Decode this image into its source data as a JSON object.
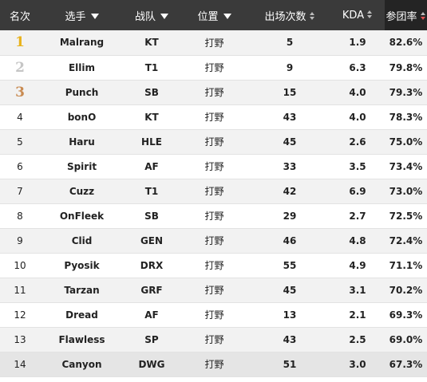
{
  "colors": {
    "header_bg": "#3a3a3a",
    "active_sort": "#e25252",
    "gold": "#e8b21b",
    "silver": "#c5c5c5",
    "bronze": "#c98b52"
  },
  "headers": {
    "rank": "名次",
    "player": "选手",
    "team": "战队",
    "position": "位置",
    "games": "出场次数",
    "kda": "KDA",
    "kill_participation": "参团率"
  },
  "rows": [
    {
      "rank": "1",
      "player": "Malrang",
      "team": "KT",
      "position": "打野",
      "games": "5",
      "kda": "1.9",
      "kp": "82.6%"
    },
    {
      "rank": "2",
      "player": "Ellim",
      "team": "T1",
      "position": "打野",
      "games": "9",
      "kda": "6.3",
      "kp": "79.8%"
    },
    {
      "rank": "3",
      "player": "Punch",
      "team": "SB",
      "position": "打野",
      "games": "15",
      "kda": "4.0",
      "kp": "79.3%"
    },
    {
      "rank": "4",
      "player": "bonO",
      "team": "KT",
      "position": "打野",
      "games": "43",
      "kda": "4.0",
      "kp": "78.3%"
    },
    {
      "rank": "5",
      "player": "Haru",
      "team": "HLE",
      "position": "打野",
      "games": "45",
      "kda": "2.6",
      "kp": "75.0%"
    },
    {
      "rank": "6",
      "player": "Spirit",
      "team": "AF",
      "position": "打野",
      "games": "33",
      "kda": "3.5",
      "kp": "73.4%"
    },
    {
      "rank": "7",
      "player": "Cuzz",
      "team": "T1",
      "position": "打野",
      "games": "42",
      "kda": "6.9",
      "kp": "73.0%"
    },
    {
      "rank": "8",
      "player": "OnFleek",
      "team": "SB",
      "position": "打野",
      "games": "29",
      "kda": "2.7",
      "kp": "72.5%"
    },
    {
      "rank": "9",
      "player": "Clid",
      "team": "GEN",
      "position": "打野",
      "games": "46",
      "kda": "4.8",
      "kp": "72.4%"
    },
    {
      "rank": "10",
      "player": "Pyosik",
      "team": "DRX",
      "position": "打野",
      "games": "55",
      "kda": "4.9",
      "kp": "71.1%"
    },
    {
      "rank": "11",
      "player": "Tarzan",
      "team": "GRF",
      "position": "打野",
      "games": "45",
      "kda": "3.1",
      "kp": "70.2%"
    },
    {
      "rank": "12",
      "player": "Dread",
      "team": "AF",
      "position": "打野",
      "games": "13",
      "kda": "2.1",
      "kp": "69.3%"
    },
    {
      "rank": "13",
      "player": "Flawless",
      "team": "SP",
      "position": "打野",
      "games": "43",
      "kda": "2.5",
      "kp": "69.0%"
    },
    {
      "rank": "14",
      "player": "Canyon",
      "team": "DWG",
      "position": "打野",
      "games": "51",
      "kda": "3.0",
      "kp": "67.3%"
    }
  ]
}
